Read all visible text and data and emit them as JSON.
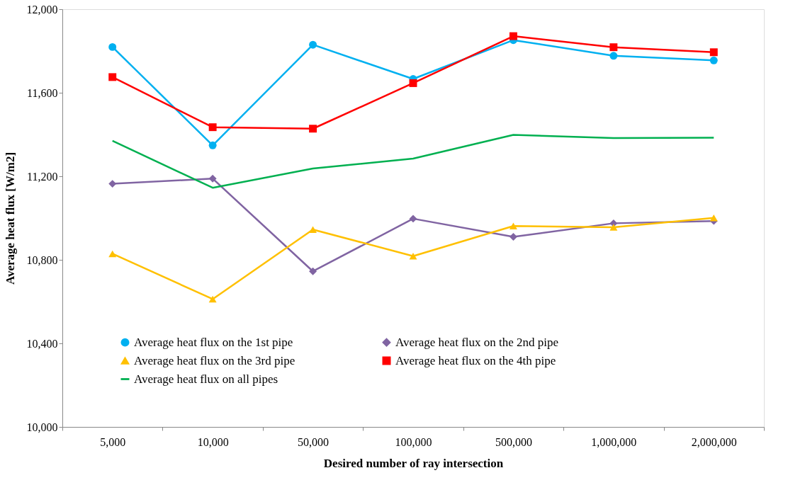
{
  "chart_data": {
    "type": "line",
    "xlabel": "Desired number of ray intersection",
    "ylabel": "Average heat flux [W/m2]",
    "categories": [
      "5,000",
      "10,000",
      "50,000",
      "100,000",
      "500,000",
      "1,000,000",
      "2,000,000"
    ],
    "series": [
      {
        "name": "Average heat flux on the 1st pipe",
        "color": "#00b0f0",
        "marker": "circle",
        "values": [
          11819,
          11348,
          11830,
          11666,
          11852,
          11777,
          11755
        ]
      },
      {
        "name": "Average heat flux on the 2nd pipe",
        "color": "#8064a2",
        "marker": "diamond",
        "values": [
          11164,
          11189,
          10745,
          10997,
          10910,
          10975,
          10986
        ]
      },
      {
        "name": "Average heat flux on the 3rd pipe",
        "color": "#ffc000",
        "marker": "triangle",
        "values": [
          10829,
          10612,
          10945,
          10818,
          10962,
          10956,
          11001
        ]
      },
      {
        "name": "Average heat flux on the 4th pipe",
        "color": "#ff0000",
        "marker": "square",
        "values": [
          11675,
          11435,
          11428,
          11646,
          11871,
          11818,
          11794
        ]
      },
      {
        "name": "Average heat flux on all pipes",
        "color": "#00b050",
        "marker": "none",
        "values": [
          11370,
          11145,
          11237,
          11285,
          11398,
          11383,
          11385
        ]
      }
    ],
    "ylim": [
      10000,
      12000
    ],
    "yticks": [
      {
        "value": 10000,
        "label": "10,000"
      },
      {
        "value": 10400,
        "label": "10,400"
      },
      {
        "value": 10800,
        "label": "10,800"
      },
      {
        "value": 11200,
        "label": "11,200"
      },
      {
        "value": 11600,
        "label": "11,600"
      },
      {
        "value": 12000,
        "label": "12,000"
      }
    ],
    "grid": false,
    "legend": "bottom",
    "line_style": "solid"
  }
}
